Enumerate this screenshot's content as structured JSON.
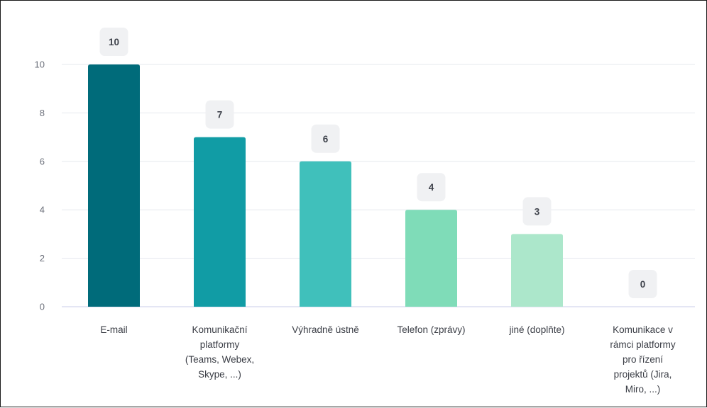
{
  "chart_data": {
    "type": "bar",
    "categories": [
      [
        "E-mail"
      ],
      [
        "Komunikační",
        "platformy",
        "(Teams, Webex,",
        "Skype, ...)"
      ],
      [
        "Výhradně ústně"
      ],
      [
        "Telefon (zprávy)"
      ],
      [
        "jiné (doplňte)"
      ],
      [
        "Komunikace v",
        "rámci platformy",
        "pro řízení",
        "projektů (Jira,",
        "Miro, ...)"
      ]
    ],
    "values": [
      10,
      7,
      6,
      4,
      3,
      0
    ],
    "value_labels": [
      "10",
      "7",
      "6",
      "4",
      "3",
      "0"
    ],
    "ylim": [
      0,
      10
    ],
    "yticks": [
      0,
      2,
      4,
      6,
      8,
      10
    ],
    "ytick_labels": [
      "0",
      "2",
      "4",
      "6",
      "8",
      "10"
    ],
    "grid": true,
    "legend": "none",
    "title": "",
    "xlabel": "",
    "ylabel": "",
    "colors": [
      "#006b7a",
      "#119ca5",
      "#40c0bb",
      "#7fdcb8",
      "#ace7cb",
      "#d6f3e5"
    ],
    "gridline_color": "#e6e8ee",
    "baseline_color": "#c9cde8",
    "label_badge_color": "#f0f1f3"
  }
}
